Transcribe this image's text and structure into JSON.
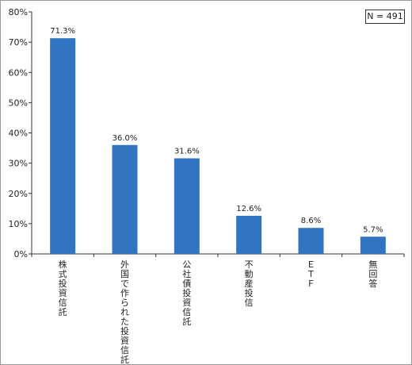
{
  "chart_data": {
    "type": "bar",
    "categories": [
      "株式投資信託",
      "外国で作られた投資信託",
      "公社債投資信託",
      "不動産投信",
      "ＥＴＦ",
      "無回答"
    ],
    "values": [
      71.3,
      36.0,
      31.6,
      12.6,
      8.6,
      5.7
    ],
    "value_labels": [
      "71.3%",
      "36.0%",
      "31.6%",
      "12.6%",
      "8.6%",
      "5.7%"
    ],
    "ylim": [
      0,
      80
    ],
    "y_ticks": [
      0,
      10,
      20,
      30,
      40,
      50,
      60,
      70,
      80
    ],
    "y_tick_labels": [
      "0%",
      "10%",
      "20%",
      "30%",
      "40%",
      "50%",
      "60%",
      "70%",
      "80%"
    ],
    "sample_size_label": "N = 491",
    "bar_color": "#3174c0",
    "grid": false,
    "title": "",
    "xlabel": "",
    "ylabel": ""
  }
}
